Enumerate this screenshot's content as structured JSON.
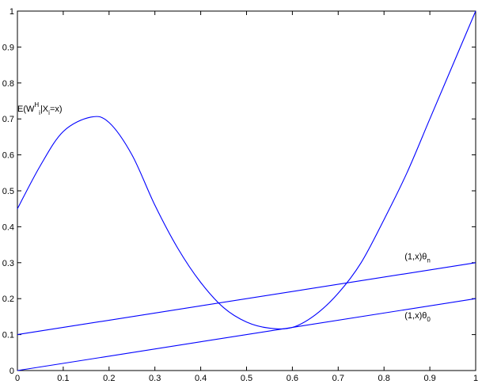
{
  "chart_data": {
    "type": "line",
    "title": "",
    "xlabel": "",
    "ylabel": "",
    "xlim": [
      0,
      1
    ],
    "ylim": [
      0,
      1
    ],
    "grid": false,
    "x_ticks": [
      "0",
      "0.1",
      "0.2",
      "0.3",
      "0.4",
      "0.5",
      "0.6",
      "0.7",
      "0.8",
      "0.9",
      "1"
    ],
    "y_ticks": [
      "0",
      "0.1",
      "0.2",
      "0.3",
      "0.4",
      "0.5",
      "0.6",
      "0.7",
      "0.8",
      "0.9",
      "1"
    ],
    "line_color": "#0000ff",
    "series": [
      {
        "x": [
          0,
          0.05,
          0.1,
          0.16,
          0.2,
          0.25,
          0.3,
          0.35,
          0.4,
          0.45,
          0.5,
          0.55,
          0.6,
          0.65,
          0.7,
          0.75,
          0.8,
          0.85,
          0.9,
          0.95,
          1
        ],
        "values": [
          0.45,
          0.57,
          0.665,
          0.705,
          0.69,
          0.6,
          0.46,
          0.34,
          0.245,
          0.175,
          0.135,
          0.118,
          0.12,
          0.155,
          0.215,
          0.3,
          0.42,
          0.55,
          0.7,
          0.85,
          1.0
        ]
      },
      {
        "x": [
          0,
          1
        ],
        "values": [
          0.1,
          0.3
        ]
      },
      {
        "x": [
          0,
          1
        ],
        "values": [
          0.0,
          0.2
        ]
      }
    ],
    "annotations": [
      {
        "text": "E(W",
        "sup": "H",
        "sub": "i",
        "text2": "|X",
        "sub2": "i",
        "text3": "=x)",
        "x": 0.0,
        "y": 0.72
      },
      {
        "text": "(1,x)θ",
        "sub": "n",
        "x": 0.845,
        "y": 0.31
      },
      {
        "text": "(1,x)θ",
        "sub": "0",
        "x": 0.845,
        "y": 0.145
      }
    ]
  }
}
